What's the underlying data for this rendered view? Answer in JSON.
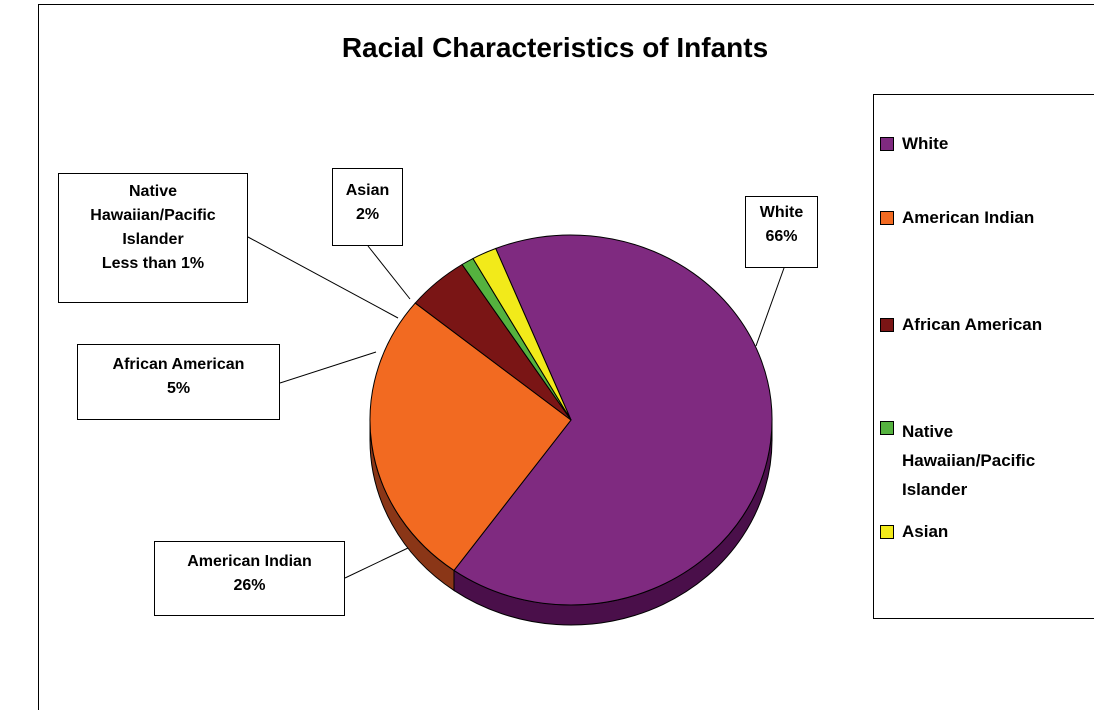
{
  "chart_data": {
    "type": "pie",
    "title": "Racial Characteristics of Infants",
    "slices": [
      {
        "name": "White",
        "value": 66,
        "label_name": "White",
        "label_value": "66%",
        "color": "#7f2a80",
        "shade": "#4a0f4a"
      },
      {
        "name": "American Indian",
        "value": 26,
        "label_name": "American Indian",
        "label_value": "26%",
        "color": "#f26a21",
        "shade": "#8a3617"
      },
      {
        "name": "African American",
        "value": 5,
        "label_name": "African American",
        "label_value": "5%",
        "color": "#7a1515",
        "shade": "#3d0a0a"
      },
      {
        "name": "Native Hawaiian/Pacific Islander",
        "value": 1,
        "label_name": "Native Hawaiian/Pacific Islander",
        "label_value": "Less than 1%",
        "color": "#55b23f",
        "shade": "#2e6a22"
      },
      {
        "name": "Asian",
        "value": 2,
        "label_name": "Asian",
        "label_value": "2%",
        "color": "#f2ea1a",
        "shade": "#8a8410"
      }
    ],
    "legend": {
      "placement": "right",
      "entries": [
        "White",
        "American Indian",
        "African American",
        "Native Hawaiian/Pacific Islander",
        "Asian"
      ]
    }
  }
}
